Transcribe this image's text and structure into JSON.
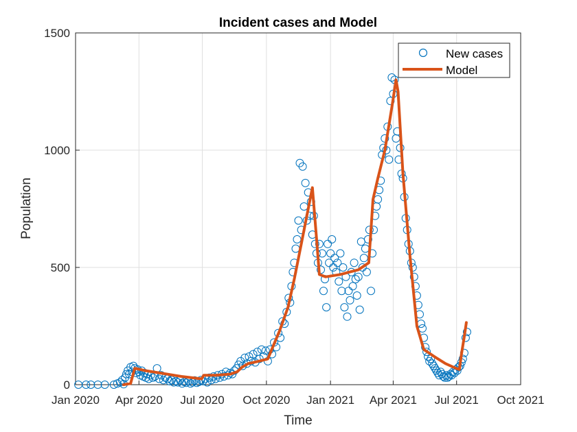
{
  "chart_data": {
    "type": "scatter",
    "title": "Incident cases and Model",
    "xlabel": "Time",
    "ylabel": "Population",
    "x_type": "date",
    "xlim": [
      "2020-01-01",
      "2021-10-01"
    ],
    "ylim": [
      0,
      1500
    ],
    "grid": true,
    "legend_position": "top-right",
    "x_ticks": [
      "2020-01-01",
      "2020-04-01",
      "2020-07-01",
      "2020-10-01",
      "2021-01-01",
      "2021-04-01",
      "2021-07-01",
      "2021-10-01"
    ],
    "x_tick_labels": [
      "Jan 2020",
      "Apr 2020",
      "Jul 2020",
      "Oct 2020",
      "Jan 2021",
      "Apr 2021",
      "Jul 2021",
      "Oct 2021"
    ],
    "y_ticks": [
      0,
      500,
      1000,
      1500
    ],
    "y_tick_labels": [
      "0",
      "500",
      "1000",
      "1500"
    ],
    "colors": {
      "new_cases": "#0072BD",
      "model": "#D95319"
    },
    "series": [
      {
        "name": "New cases",
        "style": "circle-markers",
        "points": [
          [
            "2020-01-05",
            0
          ],
          [
            "2020-01-16",
            0
          ],
          [
            "2020-01-23",
            0
          ],
          [
            "2020-02-02",
            0
          ],
          [
            "2020-02-12",
            0
          ],
          [
            "2020-02-25",
            0
          ],
          [
            "2020-03-01",
            5
          ],
          [
            "2020-03-05",
            10
          ],
          [
            "2020-03-08",
            20
          ],
          [
            "2020-03-10",
            2
          ],
          [
            "2020-03-12",
            30
          ],
          [
            "2020-03-14",
            45
          ],
          [
            "2020-03-16",
            60
          ],
          [
            "2020-03-18",
            45
          ],
          [
            "2020-03-20",
            75
          ],
          [
            "2020-03-22",
            55
          ],
          [
            "2020-03-24",
            80
          ],
          [
            "2020-03-26",
            70
          ],
          [
            "2020-03-28",
            50
          ],
          [
            "2020-03-30",
            65
          ],
          [
            "2020-04-01",
            55
          ],
          [
            "2020-04-03",
            40
          ],
          [
            "2020-04-05",
            60
          ],
          [
            "2020-04-07",
            35
          ],
          [
            "2020-04-09",
            50
          ],
          [
            "2020-04-11",
            30
          ],
          [
            "2020-04-13",
            45
          ],
          [
            "2020-04-15",
            25
          ],
          [
            "2020-04-18",
            40
          ],
          [
            "2020-04-21",
            30
          ],
          [
            "2020-04-24",
            35
          ],
          [
            "2020-04-27",
            70
          ],
          [
            "2020-04-30",
            25
          ],
          [
            "2020-05-03",
            40
          ],
          [
            "2020-05-06",
            20
          ],
          [
            "2020-05-09",
            30
          ],
          [
            "2020-05-12",
            25
          ],
          [
            "2020-05-15",
            15
          ],
          [
            "2020-05-18",
            20
          ],
          [
            "2020-05-21",
            10
          ],
          [
            "2020-05-24",
            15
          ],
          [
            "2020-05-27",
            10
          ],
          [
            "2020-05-30",
            20
          ],
          [
            "2020-06-02",
            5
          ],
          [
            "2020-06-05",
            12
          ],
          [
            "2020-06-08",
            8
          ],
          [
            "2020-06-11",
            15
          ],
          [
            "2020-06-14",
            5
          ],
          [
            "2020-06-17",
            10
          ],
          [
            "2020-06-20",
            18
          ],
          [
            "2020-06-23",
            8
          ],
          [
            "2020-06-26",
            12
          ],
          [
            "2020-06-29",
            20
          ],
          [
            "2020-07-02",
            15
          ],
          [
            "2020-07-05",
            25
          ],
          [
            "2020-07-08",
            10
          ],
          [
            "2020-07-11",
            30
          ],
          [
            "2020-07-14",
            20
          ],
          [
            "2020-07-17",
            35
          ],
          [
            "2020-07-20",
            25
          ],
          [
            "2020-07-23",
            40
          ],
          [
            "2020-07-26",
            30
          ],
          [
            "2020-07-29",
            45
          ],
          [
            "2020-08-01",
            35
          ],
          [
            "2020-08-04",
            55
          ],
          [
            "2020-08-07",
            40
          ],
          [
            "2020-08-10",
            50
          ],
          [
            "2020-08-13",
            45
          ],
          [
            "2020-08-16",
            60
          ],
          [
            "2020-08-19",
            70
          ],
          [
            "2020-08-22",
            85
          ],
          [
            "2020-08-25",
            100
          ],
          [
            "2020-08-28",
            80
          ],
          [
            "2020-08-31",
            115
          ],
          [
            "2020-09-03",
            90
          ],
          [
            "2020-09-06",
            120
          ],
          [
            "2020-09-09",
            100
          ],
          [
            "2020-09-12",
            130
          ],
          [
            "2020-09-15",
            95
          ],
          [
            "2020-09-18",
            140
          ],
          [
            "2020-09-21",
            110
          ],
          [
            "2020-09-24",
            150
          ],
          [
            "2020-09-27",
            120
          ],
          [
            "2020-09-30",
            145
          ],
          [
            "2020-10-03",
            100
          ],
          [
            "2020-10-06",
            150
          ],
          [
            "2020-10-09",
            130
          ],
          [
            "2020-10-12",
            180
          ],
          [
            "2020-10-15",
            160
          ],
          [
            "2020-10-18",
            220
          ],
          [
            "2020-10-21",
            200
          ],
          [
            "2020-10-24",
            270
          ],
          [
            "2020-10-27",
            260
          ],
          [
            "2020-10-30",
            310
          ],
          [
            "2020-11-02",
            370
          ],
          [
            "2020-11-04",
            350
          ],
          [
            "2020-11-06",
            420
          ],
          [
            "2020-11-08",
            480
          ],
          [
            "2020-11-10",
            520
          ],
          [
            "2020-11-12",
            580
          ],
          [
            "2020-11-14",
            620
          ],
          [
            "2020-11-16",
            700
          ],
          [
            "2020-11-18",
            945
          ],
          [
            "2020-11-20",
            660
          ],
          [
            "2020-11-22",
            930
          ],
          [
            "2020-11-24",
            760
          ],
          [
            "2020-11-26",
            860
          ],
          [
            "2020-11-28",
            700
          ],
          [
            "2020-11-30",
            820
          ],
          [
            "2020-12-02",
            720
          ],
          [
            "2020-12-04",
            780
          ],
          [
            "2020-12-06",
            640
          ],
          [
            "2020-12-08",
            720
          ],
          [
            "2020-12-10",
            600
          ],
          [
            "2020-12-12",
            560
          ],
          [
            "2020-12-14",
            520
          ],
          [
            "2020-12-16",
            600
          ],
          [
            "2020-12-18",
            490
          ],
          [
            "2020-12-20",
            560
          ],
          [
            "2020-12-22",
            400
          ],
          [
            "2020-12-24",
            450
          ],
          [
            "2020-12-26",
            330
          ],
          [
            "2020-12-28",
            600
          ],
          [
            "2020-12-30",
            520
          ],
          [
            "2021-01-01",
            560
          ],
          [
            "2021-01-03",
            620
          ],
          [
            "2021-01-05",
            500
          ],
          [
            "2021-01-07",
            540
          ],
          [
            "2021-01-09",
            480
          ],
          [
            "2021-01-11",
            520
          ],
          [
            "2021-01-13",
            440
          ],
          [
            "2021-01-15",
            560
          ],
          [
            "2021-01-17",
            400
          ],
          [
            "2021-01-19",
            500
          ],
          [
            "2021-01-21",
            330
          ],
          [
            "2021-01-23",
            460
          ],
          [
            "2021-01-25",
            290
          ],
          [
            "2021-01-27",
            400
          ],
          [
            "2021-01-29",
            360
          ],
          [
            "2021-01-31",
            480
          ],
          [
            "2021-02-02",
            420
          ],
          [
            "2021-02-04",
            520
          ],
          [
            "2021-02-06",
            450
          ],
          [
            "2021-02-08",
            380
          ],
          [
            "2021-02-10",
            460
          ],
          [
            "2021-02-12",
            320
          ],
          [
            "2021-02-14",
            610
          ],
          [
            "2021-02-16",
            500
          ],
          [
            "2021-02-18",
            540
          ],
          [
            "2021-02-20",
            580
          ],
          [
            "2021-02-22",
            480
          ],
          [
            "2021-02-24",
            620
          ],
          [
            "2021-02-26",
            660
          ],
          [
            "2021-02-28",
            400
          ],
          [
            "2021-03-02",
            560
          ],
          [
            "2021-03-04",
            660
          ],
          [
            "2021-03-06",
            720
          ],
          [
            "2021-03-08",
            760
          ],
          [
            "2021-03-10",
            790
          ],
          [
            "2021-03-12",
            830
          ],
          [
            "2021-03-14",
            870
          ],
          [
            "2021-03-16",
            980
          ],
          [
            "2021-03-18",
            1010
          ],
          [
            "2021-03-20",
            1050
          ],
          [
            "2021-03-22",
            1000
          ],
          [
            "2021-03-24",
            1100
          ],
          [
            "2021-03-26",
            960
          ],
          [
            "2021-03-28",
            1210
          ],
          [
            "2021-03-30",
            1310
          ],
          [
            "2021-04-01",
            1240
          ],
          [
            "2021-04-03",
            1300
          ],
          [
            "2021-04-05",
            1050
          ],
          [
            "2021-04-07",
            1080
          ],
          [
            "2021-04-09",
            960
          ],
          [
            "2021-04-11",
            1010
          ],
          [
            "2021-04-13",
            900
          ],
          [
            "2021-04-15",
            880
          ],
          [
            "2021-04-17",
            800
          ],
          [
            "2021-04-19",
            710
          ],
          [
            "2021-04-21",
            660
          ],
          [
            "2021-04-23",
            600
          ],
          [
            "2021-04-25",
            570
          ],
          [
            "2021-04-27",
            520
          ],
          [
            "2021-04-29",
            500
          ],
          [
            "2021-05-01",
            460
          ],
          [
            "2021-05-03",
            420
          ],
          [
            "2021-05-05",
            380
          ],
          [
            "2021-05-07",
            340
          ],
          [
            "2021-05-09",
            300
          ],
          [
            "2021-05-11",
            260
          ],
          [
            "2021-05-13",
            240
          ],
          [
            "2021-05-15",
            200
          ],
          [
            "2021-05-17",
            160
          ],
          [
            "2021-05-19",
            140
          ],
          [
            "2021-05-21",
            120
          ],
          [
            "2021-05-23",
            100
          ],
          [
            "2021-05-25",
            110
          ],
          [
            "2021-05-27",
            90
          ],
          [
            "2021-05-29",
            80
          ],
          [
            "2021-05-31",
            70
          ],
          [
            "2021-06-02",
            60
          ],
          [
            "2021-06-04",
            50
          ],
          [
            "2021-06-06",
            40
          ],
          [
            "2021-06-08",
            55
          ],
          [
            "2021-06-10",
            45
          ],
          [
            "2021-06-12",
            35
          ],
          [
            "2021-06-14",
            30
          ],
          [
            "2021-06-16",
            40
          ],
          [
            "2021-06-18",
            30
          ],
          [
            "2021-06-20",
            35
          ],
          [
            "2021-06-22",
            45
          ],
          [
            "2021-06-24",
            40
          ],
          [
            "2021-06-26",
            55
          ],
          [
            "2021-06-28",
            50
          ],
          [
            "2021-06-30",
            65
          ],
          [
            "2021-07-02",
            60
          ],
          [
            "2021-07-04",
            75
          ],
          [
            "2021-07-06",
            80
          ],
          [
            "2021-07-08",
            95
          ],
          [
            "2021-07-10",
            110
          ],
          [
            "2021-07-12",
            135
          ],
          [
            "2021-07-14",
            200
          ],
          [
            "2021-07-16",
            225
          ]
        ]
      },
      {
        "name": "Model",
        "style": "line",
        "points": [
          [
            "2020-03-10",
            0
          ],
          [
            "2020-03-20",
            5
          ],
          [
            "2020-03-26",
            70
          ],
          [
            "2020-04-10",
            60
          ],
          [
            "2020-05-01",
            50
          ],
          [
            "2020-06-01",
            35
          ],
          [
            "2020-06-30",
            25
          ],
          [
            "2020-07-03",
            40
          ],
          [
            "2020-07-20",
            40
          ],
          [
            "2020-08-10",
            45
          ],
          [
            "2020-08-20",
            55
          ],
          [
            "2020-08-27",
            75
          ],
          [
            "2020-09-05",
            90
          ],
          [
            "2020-09-20",
            100
          ],
          [
            "2020-10-03",
            110
          ],
          [
            "2020-10-10",
            160
          ],
          [
            "2020-10-20",
            230
          ],
          [
            "2020-11-01",
            330
          ],
          [
            "2020-11-10",
            450
          ],
          [
            "2020-11-20",
            600
          ],
          [
            "2020-11-30",
            750
          ],
          [
            "2020-12-06",
            840
          ],
          [
            "2020-12-12",
            620
          ],
          [
            "2020-12-16",
            470
          ],
          [
            "2020-12-25",
            460
          ],
          [
            "2021-01-15",
            470
          ],
          [
            "2021-02-10",
            490
          ],
          [
            "2021-02-20",
            510
          ],
          [
            "2021-02-25",
            520
          ],
          [
            "2021-03-03",
            790
          ],
          [
            "2021-03-10",
            880
          ],
          [
            "2021-03-20",
            1000
          ],
          [
            "2021-03-31",
            1200
          ],
          [
            "2021-04-05",
            1300
          ],
          [
            "2021-04-08",
            1250
          ],
          [
            "2021-04-15",
            900
          ],
          [
            "2021-04-25",
            550
          ],
          [
            "2021-05-05",
            250
          ],
          [
            "2021-05-15",
            150
          ],
          [
            "2021-05-30",
            120
          ],
          [
            "2021-06-15",
            90
          ],
          [
            "2021-06-30",
            70
          ],
          [
            "2021-07-05",
            65
          ],
          [
            "2021-07-08",
            130
          ],
          [
            "2021-07-12",
            205
          ],
          [
            "2021-07-15",
            265
          ]
        ]
      }
    ]
  }
}
